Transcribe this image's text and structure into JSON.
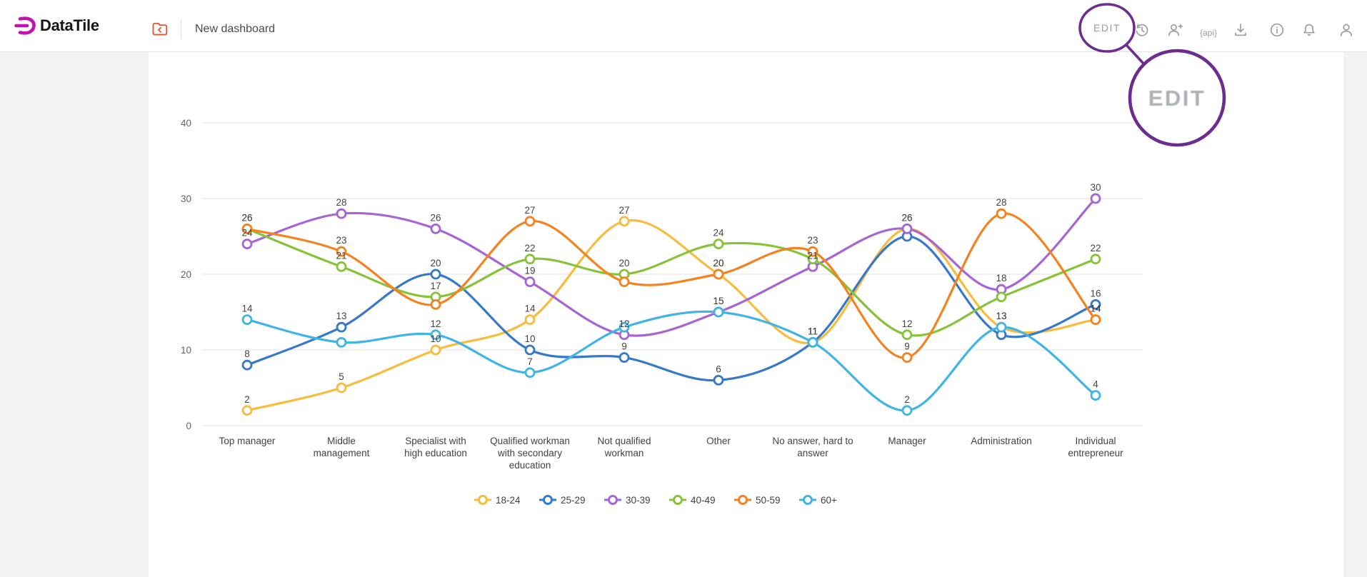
{
  "header": {
    "brand": "DataTile",
    "dashboard_title": "New dashboard",
    "edit_label": "EDIT",
    "folder_icon": "dashboards-folder-icon",
    "icons": [
      "history-icon",
      "add-user-icon",
      "api-icon",
      "download-icon",
      "info-icon",
      "notifications-icon",
      "profile-icon"
    ],
    "api_icon_label": "{api}",
    "icon_color": "#9e9e9e",
    "brand_color": "#c312ae",
    "folder_icon_color": "#e05a3a"
  },
  "annotation": {
    "label": "EDIT",
    "circle_color": "#6b2d90",
    "text_color": "#9fa3a8"
  },
  "chart_data": {
    "type": "line",
    "smooth": true,
    "grid": true,
    "ylim": [
      0,
      40
    ],
    "yticks": [
      0,
      10,
      20,
      30,
      40
    ],
    "legend_position": "bottom",
    "categories": [
      "Top manager",
      "Middle\nmanagement",
      "Specialist with\nhigh education",
      "Qualified workman\nwith secondary\neducation",
      "Not qualified\nworkman",
      "Other",
      "No answer, hard to\nanswer",
      "Manager",
      "Administration",
      "Individual\nentrepreneur"
    ],
    "series": [
      {
        "name": "18-24",
        "color": "#f8bc3c",
        "values": [
          2,
          5,
          10,
          14,
          27,
          20,
          11,
          26,
          13,
          14
        ],
        "label_visible": [
          true,
          true,
          true,
          true,
          true,
          true,
          true,
          true,
          true,
          true
        ]
      },
      {
        "name": "25-29",
        "color": "#3678c9",
        "values": [
          8,
          13,
          20,
          10,
          9,
          6,
          11,
          25,
          12,
          16
        ],
        "label_visible": [
          true,
          true,
          true,
          true,
          true,
          true,
          true,
          false,
          false,
          true
        ]
      },
      {
        "name": "30-39",
        "color": "#a765d3",
        "values": [
          24,
          28,
          26,
          19,
          12,
          15,
          21,
          26,
          18,
          30
        ],
        "label_visible": [
          true,
          true,
          true,
          true,
          true,
          true,
          true,
          true,
          true,
          true
        ]
      },
      {
        "name": "40-49",
        "color": "#87c238",
        "values": [
          26,
          21,
          17,
          22,
          20,
          24,
          22,
          12,
          17,
          22
        ],
        "label_visible": [
          true,
          true,
          true,
          true,
          true,
          true,
          false,
          true,
          false,
          true
        ]
      },
      {
        "name": "50-59",
        "color": "#f5821f",
        "values": [
          26,
          23,
          16,
          27,
          19,
          20,
          23,
          9,
          28,
          14
        ],
        "label_visible": [
          true,
          true,
          false,
          true,
          false,
          true,
          true,
          true,
          true,
          true
        ]
      },
      {
        "name": "60+",
        "color": "#3fb4e5",
        "values": [
          14,
          11,
          12,
          7,
          13,
          15,
          11,
          2,
          13,
          4
        ],
        "label_visible": [
          true,
          false,
          true,
          true,
          false,
          true,
          true,
          true,
          true,
          true
        ]
      }
    ]
  },
  "colors": {
    "page_bg": "#f2f2f3",
    "card_bg": "#ffffff",
    "grid": "#e2e2e2",
    "axis_text": "#5f6368",
    "data_label_text": "#444444",
    "legend_text": "#424242"
  }
}
